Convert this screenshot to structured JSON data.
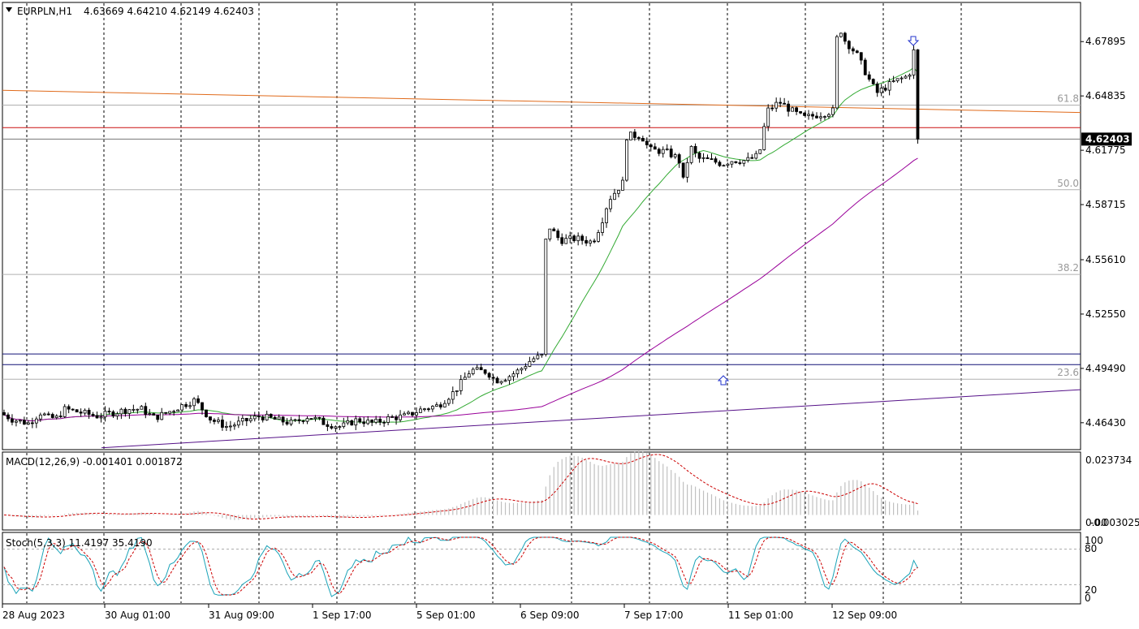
{
  "header": {
    "symbol": "EURPLN,H1",
    "ohlc": "4.63669 4.64210 4.62149 4.62403"
  },
  "macd_label": "MACD(12,26,9) -0.001401 0.001872",
  "stoch_label": "Stoch(5,3,3) 11.4197 35.4190",
  "price_axis": [
    "4.67895",
    "4.64835",
    "4.61775",
    "4.58715",
    "4.55610",
    "4.52550",
    "4.49490",
    "4.46430"
  ],
  "current_price": "4.62403",
  "macd_axis": {
    "top": "0.023734",
    "bottom": "0.00",
    "bottom2": "-0.003025"
  },
  "stoch_axis": [
    "100",
    "80",
    "20",
    "0"
  ],
  "fib_levels": [
    {
      "label": "61.8",
      "price": 4.6432
    },
    {
      "label": "50.0",
      "price": 4.5955
    },
    {
      "label": "38.2",
      "price": 4.5478
    },
    {
      "label": "23.6",
      "price": 4.4888
    }
  ],
  "time_axis": [
    "28 Aug 2023",
    "30 Aug 01:00",
    "31 Aug 09:00",
    "1 Sep 17:00",
    "5 Sep 01:00",
    "6 Sep 09:00",
    "7 Sep 17:00",
    "11 Sep 01:00",
    "12 Sep 09:00"
  ],
  "colors": {
    "bull": "#ffffff",
    "bear": "#000000",
    "grid": "#000000",
    "ma_fast": "#33aa33",
    "ma_slow": "#990099",
    "trend": "#551188",
    "fib": "#b0b0b0",
    "orange": "#e06a1a",
    "red": "#cc1111",
    "blue": "#111177",
    "macd_hist": "#c0c0c0",
    "macd_signal": "#cc0000",
    "stoch_main": "#1aa3b8",
    "stoch_signal": "#cc0000"
  },
  "chart_data": {
    "type": "candlestick",
    "symbol": "EURPLN",
    "timeframe": "H1",
    "last_bar": {
      "open": 4.63669,
      "high": 4.6421,
      "low": 4.62149,
      "close": 4.62403
    },
    "ylim": [
      4.4496,
      4.701
    ],
    "approx_close_path": [
      {
        "time": "28 Aug 2023",
        "close": 4.47
      },
      {
        "time": "30 Aug 01:00",
        "close": 4.466
      },
      {
        "time": "31 Aug 09:00",
        "close": 4.468
      },
      {
        "time": "1 Sep 17:00",
        "close": 4.466
      },
      {
        "time": "5 Sep 01:00",
        "close": 4.475
      },
      {
        "time": "6 Sep 09:00",
        "close": 4.566
      },
      {
        "time": "7 Sep 17:00",
        "close": 4.62
      },
      {
        "time": "11 Sep 01:00",
        "close": 4.64
      },
      {
        "time": "12 Sep 09:00",
        "close": 4.66
      }
    ],
    "horizontal_levels": [
      {
        "name": "red line",
        "value": 4.6305
      },
      {
        "name": "blue line 1",
        "value": 4.503
      },
      {
        "name": "blue line 2",
        "value": 4.497
      }
    ],
    "macd": {
      "main": -0.001401,
      "signal": 0.001872
    },
    "stochastic": {
      "main": 11.4197,
      "signal": 35.419,
      "levels": [
        20,
        80
      ]
    }
  }
}
